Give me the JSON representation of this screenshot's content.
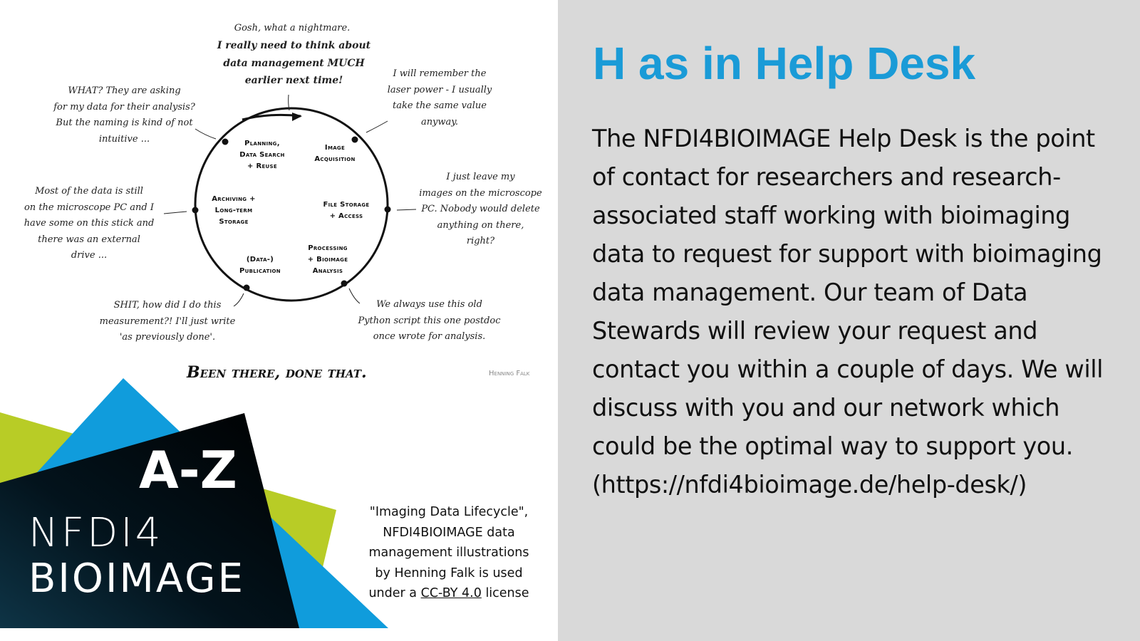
{
  "slide": {
    "title": "H as in Help Desk",
    "body": "The NFDI4BIOIMAGE Help Desk is the point of contact for researchers and research-associated staff working with bioimaging data to request for support with bioimaging data management. Our team of Data Stewards will review your request and contact you within a couple of days. We will discuss with you and our network which could be the optimal way to support you. (https://nfdi4bioimage.de/help-desk/)",
    "colors": {
      "title": "#1a9bd7",
      "panel_bg": "#d9d9d9",
      "green": "#b8cc26",
      "blue": "#109cdc",
      "dark": "#03131c"
    }
  },
  "illustration": {
    "stages": [
      "Planning,\nData Search\n+ Reuse",
      "Image\nAcquisition",
      "File Storage\n+ Access",
      "Processing\n+ Bioimage\nAnalysis",
      "(Data-)\nPublication",
      "Archiving +\nLong-term\nStorage"
    ],
    "quotes": {
      "top": "Gosh, what a nightmare.",
      "top_bold": "I really need to think about\ndata management MUCH\nearlier next time!",
      "acquisition": "I will remember the\nlaser power - I usually\ntake the same value\nanyway.",
      "storage": "I just leave my\nimages on the microscope\nPC. Nobody would delete\nanything on there,\nright?",
      "analysis": "We always use this old\nPython script this one postdoc\nonce wrote for analysis.",
      "publication": "SHIT, how did I do this\nmeasurement?! I'll just write\n'as previously done'.",
      "archiving": "Most of the data is still\non the microscope PC and I\nhave some on this stick and\nthere was an external\ndrive ...",
      "planning": "WHAT? They are asking\nfor my data for their analysis?\nBut the naming is kind of not\nintuitive ..."
    },
    "motto": "Been there, done that.",
    "signature": "Henning Falk"
  },
  "logo": {
    "az": "A-Z",
    "line1": "NFDI4",
    "line2": "BIOIMAGE"
  },
  "credit": {
    "text": "\"Imaging Data Lifecycle\", NFDI4BIOIMAGE data management illustrations by Henning Falk is used under a",
    "link": "CC-BY 4.0",
    "suffix": "license"
  }
}
